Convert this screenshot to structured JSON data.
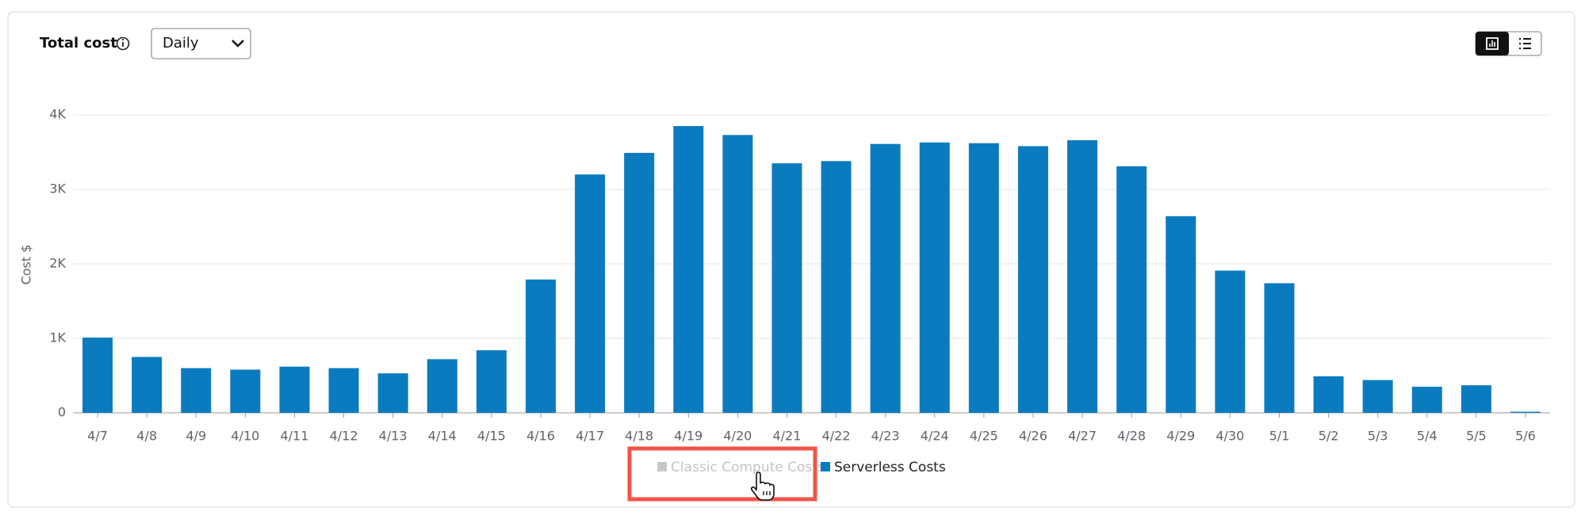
{
  "header": {
    "title": "Total cost",
    "period": "Daily"
  },
  "chart_data": {
    "type": "bar",
    "ylabel": "Cost $",
    "categories": [
      "4/7",
      "4/8",
      "4/9",
      "4/10",
      "4/11",
      "4/12",
      "4/13",
      "4/14",
      "4/15",
      "4/16",
      "4/17",
      "4/18",
      "4/19",
      "4/20",
      "4/21",
      "4/22",
      "4/23",
      "4/24",
      "4/25",
      "4/26",
      "4/27",
      "4/28",
      "4/29",
      "4/30",
      "5/1",
      "5/2",
      "5/3",
      "5/4",
      "5/5",
      "5/6"
    ],
    "series": [
      {
        "name": "Classic Compute Costs",
        "color": "#c8c8c8",
        "visible": false,
        "values": [
          null,
          null,
          null,
          null,
          null,
          null,
          null,
          null,
          null,
          null,
          null,
          null,
          null,
          null,
          null,
          null,
          null,
          null,
          null,
          null,
          null,
          null,
          null,
          null,
          null,
          null,
          null,
          null,
          null,
          null
        ]
      },
      {
        "name": "Serverless Costs",
        "color": "#0b7bbf",
        "visible": true,
        "values": [
          1010,
          750,
          600,
          580,
          620,
          600,
          530,
          720,
          840,
          1790,
          3200,
          3490,
          3850,
          3730,
          3350,
          3380,
          3610,
          3630,
          3620,
          3580,
          3660,
          3310,
          2640,
          1910,
          1740,
          490,
          440,
          350,
          370,
          15
        ]
      }
    ],
    "ylim": [
      0,
      4000
    ],
    "yticks": [
      {
        "value": 0,
        "label": "0"
      },
      {
        "value": 1000,
        "label": "1K"
      },
      {
        "value": 2000,
        "label": "2K"
      },
      {
        "value": 3000,
        "label": "3K"
      },
      {
        "value": 4000,
        "label": "4K"
      }
    ],
    "grid": true
  }
}
